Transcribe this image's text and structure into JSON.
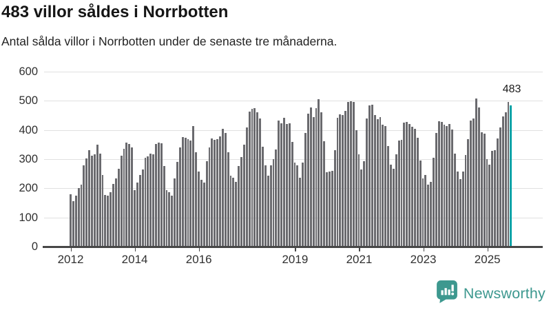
{
  "header": {
    "title": "483 villor såldes i Norrbotten",
    "subtitle": "Antal sålda villor i Norrbotten under de senaste tre månaderna."
  },
  "footer": {
    "brand": "Newsworthy"
  },
  "colors": {
    "bar": "#6a6a6e",
    "highlight": "#00a2a6",
    "grid": "#e0e0e0",
    "axis": "#474747",
    "text": "#1d1d1d",
    "brand": "#3d988f"
  },
  "chart_data": {
    "type": "bar",
    "title": "483 villor såldes i Norrbotten",
    "subtitle": "Antal sålda villor i Norrbotten under de senaste tre månaderna.",
    "unit": "sålda villor, rullande tremånadersperiod",
    "frequency": "monthly",
    "x_start": "2012-01",
    "x_end": "2025-10",
    "ylim": [
      0,
      600
    ],
    "y_ticks": [
      0,
      100,
      200,
      300,
      400,
      500,
      600
    ],
    "x_tick_years": [
      2012,
      2014,
      2016,
      2019,
      2021,
      2023,
      2025
    ],
    "grid": true,
    "legend": "none",
    "annotation": "483",
    "latest_value": 483,
    "highlight_index": 165,
    "values": [
      178,
      155,
      173,
      200,
      212,
      277,
      302,
      330,
      312,
      316,
      350,
      318,
      246,
      177,
      175,
      185,
      215,
      232,
      266,
      311,
      336,
      356,
      352,
      340,
      192,
      220,
      244,
      264,
      303,
      309,
      319,
      315,
      351,
      356,
      355,
      276,
      192,
      186,
      173,
      232,
      290,
      339,
      375,
      372,
      367,
      364,
      412,
      323,
      257,
      228,
      218,
      292,
      340,
      371,
      366,
      368,
      378,
      403,
      389,
      324,
      243,
      235,
      221,
      275,
      306,
      350,
      409,
      463,
      472,
      474,
      460,
      439,
      342,
      279,
      243,
      277,
      300,
      332,
      431,
      423,
      442,
      421,
      423,
      358,
      287,
      277,
      235,
      287,
      390,
      456,
      476,
      445,
      474,
      505,
      460,
      362,
      255,
      257,
      260,
      330,
      442,
      453,
      451,
      465,
      495,
      499,
      497,
      400,
      316,
      264,
      292,
      440,
      483,
      486,
      452,
      436,
      444,
      417,
      412,
      345,
      280,
      266,
      317,
      363,
      366,
      425,
      428,
      420,
      410,
      404,
      372,
      295,
      234,
      244,
      212,
      222,
      305,
      390,
      430,
      428,
      417,
      412,
      420,
      401,
      319,
      258,
      230,
      256,
      314,
      367,
      433,
      440,
      507,
      478,
      391,
      386,
      299,
      281,
      327,
      330,
      370,
      408,
      446,
      460,
      497,
      483
    ]
  }
}
